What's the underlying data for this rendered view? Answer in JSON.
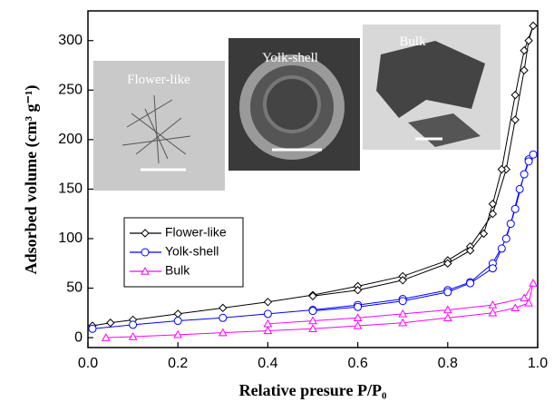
{
  "chart_data": {
    "type": "line",
    "xlabel": "Relative presure P/P₀",
    "ylabel": "Adsorbed volume (cm³ g⁻¹)",
    "annotations": [
      "Flower-like",
      "Yolk-shell",
      "Bulk"
    ],
    "xlim": [
      0,
      1
    ],
    "ylim": [
      -10,
      330
    ],
    "xticks": [
      {
        "value": 0,
        "label": "0.0"
      },
      0.2,
      0.4,
      0.6,
      0.8,
      {
        "value": 1,
        "label": "1.0"
      }
    ],
    "yticks": [
      0,
      50,
      100,
      150,
      200,
      250,
      300
    ],
    "series": [
      {
        "name": "Flower-like",
        "color": "#000000",
        "marker": "diamond",
        "x": [
          0.01,
          0.05,
          0.1,
          0.2,
          0.3,
          0.4,
          0.5,
          0.6,
          0.7,
          0.8,
          0.85,
          0.9,
          0.93,
          0.95,
          0.97,
          0.98,
          0.99,
          0.97,
          0.95,
          0.92,
          0.9,
          0.88,
          0.85,
          0.8,
          0.7,
          0.6,
          0.5
        ],
        "values": [
          12,
          15,
          18,
          24,
          30,
          36,
          43,
          52,
          62,
          78,
          92,
          125,
          170,
          220,
          270,
          300,
          315,
          290,
          245,
          170,
          135,
          105,
          88,
          75,
          58,
          48,
          42
        ]
      },
      {
        "name": "Yolk-shell",
        "color": "#0000ff",
        "marker": "circle",
        "x": [
          0.01,
          0.1,
          0.2,
          0.3,
          0.4,
          0.5,
          0.6,
          0.7,
          0.8,
          0.85,
          0.9,
          0.93,
          0.95,
          0.97,
          0.98,
          0.99,
          0.98,
          0.96,
          0.94,
          0.92,
          0.9,
          0.85,
          0.8,
          0.7,
          0.6,
          0.5
        ],
        "values": [
          9,
          13,
          17,
          20,
          24,
          28,
          33,
          39,
          48,
          56,
          75,
          100,
          130,
          165,
          180,
          185,
          178,
          150,
          115,
          90,
          70,
          55,
          46,
          37,
          31,
          27
        ]
      },
      {
        "name": "Bulk",
        "color": "#ff00ff",
        "marker": "triangle",
        "x": [
          0.04,
          0.1,
          0.2,
          0.3,
          0.4,
          0.5,
          0.6,
          0.7,
          0.8,
          0.9,
          0.95,
          0.98,
          0.99,
          0.97,
          0.9,
          0.8,
          0.7,
          0.6,
          0.5,
          0.4
        ],
        "values": [
          0,
          1,
          3,
          5,
          7,
          9,
          12,
          15,
          20,
          25,
          30,
          35,
          55,
          40,
          33,
          28,
          24,
          20,
          17,
          14
        ]
      }
    ]
  }
}
